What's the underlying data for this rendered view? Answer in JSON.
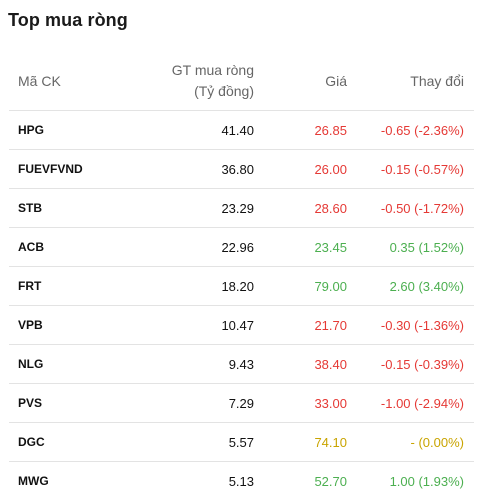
{
  "title": "Top mua ròng",
  "headers": {
    "symbol": "Mã CK",
    "net_buy_line1": "GT mua ròng",
    "net_buy_line2": "(Tỷ đồng)",
    "price": "Giá",
    "change": "Thay đổi"
  },
  "colors": {
    "down": "#e53935",
    "up": "#4caf50",
    "reference": "#c9a400"
  },
  "rows": [
    {
      "symbol": "HPG",
      "net_buy": "41.40",
      "price": "26.85",
      "change": "-0.65 (-2.36%)",
      "trend": "down"
    },
    {
      "symbol": "FUEVFVND",
      "net_buy": "36.80",
      "price": "26.00",
      "change": "-0.15 (-0.57%)",
      "trend": "down"
    },
    {
      "symbol": "STB",
      "net_buy": "23.29",
      "price": "28.60",
      "change": "-0.50 (-1.72%)",
      "trend": "down"
    },
    {
      "symbol": "ACB",
      "net_buy": "22.96",
      "price": "23.45",
      "change": "0.35 (1.52%)",
      "trend": "up"
    },
    {
      "symbol": "FRT",
      "net_buy": "18.20",
      "price": "79.00",
      "change": "2.60 (3.40%)",
      "trend": "up"
    },
    {
      "symbol": "VPB",
      "net_buy": "10.47",
      "price": "21.70",
      "change": "-0.30 (-1.36%)",
      "trend": "down"
    },
    {
      "symbol": "NLG",
      "net_buy": "9.43",
      "price": "38.40",
      "change": "-0.15 (-0.39%)",
      "trend": "down"
    },
    {
      "symbol": "PVS",
      "net_buy": "7.29",
      "price": "33.00",
      "change": "-1.00 (-2.94%)",
      "trend": "down"
    },
    {
      "symbol": "DGC",
      "net_buy": "5.57",
      "price": "74.10",
      "change": "- (0.00%)",
      "trend": "ref"
    },
    {
      "symbol": "MWG",
      "net_buy": "5.13",
      "price": "52.70",
      "change": "1.00 (1.93%)",
      "trend": "up"
    }
  ]
}
